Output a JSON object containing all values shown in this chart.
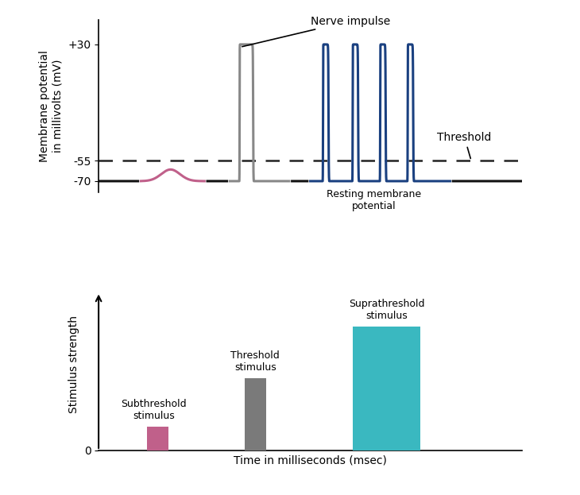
{
  "top_ylabel": "Membrane potential\nin millivolts (mV)",
  "bottom_xlabel": "Time in milliseconds (msec)",
  "bottom_ylabel": "Stimulus strength",
  "threshold_label": "Threshold",
  "threshold_value": -55,
  "resting_value": -70,
  "nerve_impulse_label": "Nerve impulse",
  "resting_label": "Resting membrane\npotential",
  "subthreshold_label": "Subthreshold\nstimulus",
  "threshold_stim_label": "Threshold\nstimulus",
  "suprathreshold_label": "Suprathreshold\nstimulus",
  "bar_pink_color": "#C0608A",
  "bar_gray_color": "#7A7A7A",
  "bar_cyan_color": "#3AB8C0",
  "line_black_color": "#111111",
  "line_gray_color": "#888888",
  "line_blue_color": "#1A4080",
  "line_pink_color": "#C0608A",
  "dashed_color": "#222222",
  "bg_color": "#ffffff"
}
